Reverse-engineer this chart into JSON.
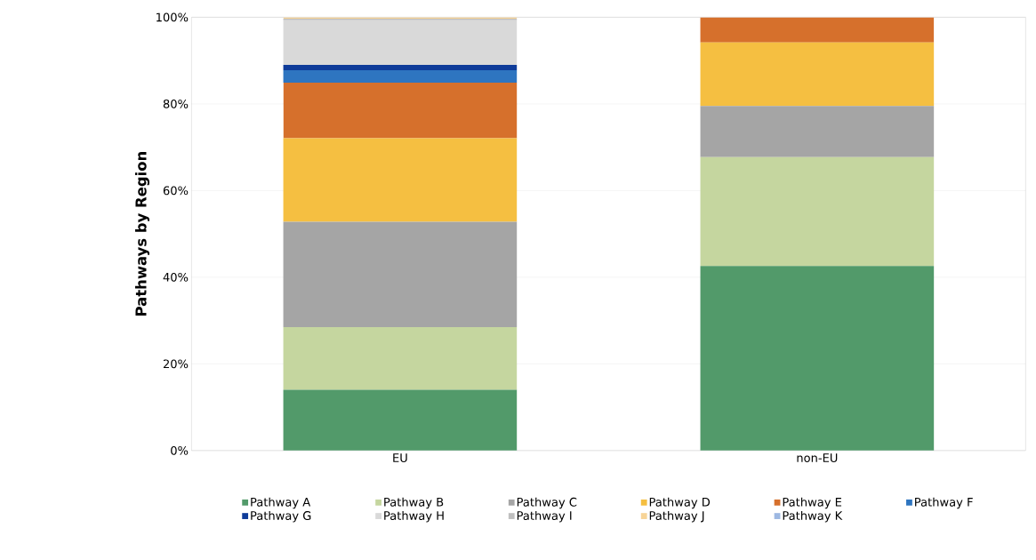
{
  "chart_data": {
    "type": "bar",
    "stacked": true,
    "ylabel": "Pathways by Region",
    "categories": [
      "EU",
      "non-EU"
    ],
    "series": [
      {
        "name": "Pathway A",
        "color": "#529a6a",
        "values": [
          14,
          42.6
        ]
      },
      {
        "name": "Pathway B",
        "color": "#c5d69f",
        "values": [
          14.5,
          25.1
        ]
      },
      {
        "name": "Pathway C",
        "color": "#a5a5a5",
        "values": [
          24.3,
          11.8
        ]
      },
      {
        "name": "Pathway D",
        "color": "#f5bf41",
        "values": [
          19.3,
          14.7
        ]
      },
      {
        "name": "Pathway E",
        "color": "#d6702c",
        "values": [
          12.8,
          5.8
        ]
      },
      {
        "name": "Pathway F",
        "color": "#2e75c0",
        "values": [
          2.9,
          0
        ]
      },
      {
        "name": "Pathway G",
        "color": "#0e3b99",
        "values": [
          1.2,
          0
        ]
      },
      {
        "name": "Pathway H",
        "color": "#d9d9d9",
        "values": [
          10.3,
          0
        ]
      },
      {
        "name": "Pathway I",
        "color": "#bfbfbf",
        "values": [
          0.4,
          0
        ]
      },
      {
        "name": "Pathway J",
        "color": "#f7d497",
        "values": [
          0.3,
          0
        ]
      },
      {
        "name": "Pathway K",
        "color": "#9db8e2",
        "values": [
          0,
          0
        ]
      }
    ],
    "ylim": [
      0,
      100
    ],
    "yticks": [
      {
        "value": 0,
        "label": "0%"
      },
      {
        "value": 20,
        "label": "20%"
      },
      {
        "value": 40,
        "label": "40%"
      },
      {
        "value": 60,
        "label": "60%"
      },
      {
        "value": 80,
        "label": "80%"
      },
      {
        "value": 100,
        "label": "100%"
      }
    ],
    "grid": "y",
    "legend": "bottom"
  }
}
